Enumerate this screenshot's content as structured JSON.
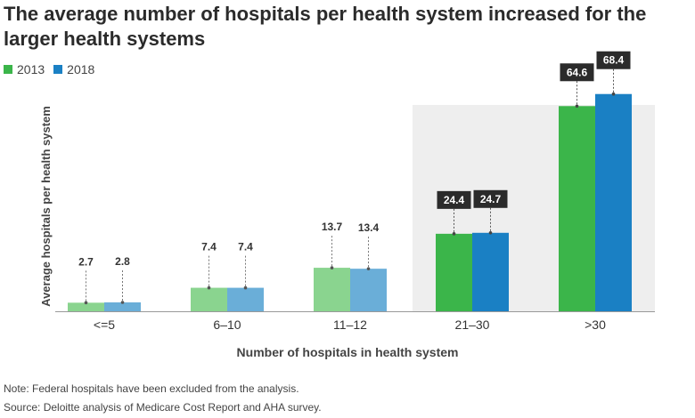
{
  "title": "The average number of hospitals per health system increased for the larger health systems",
  "legend": [
    {
      "label": "2013",
      "color": "#3bb54a"
    },
    {
      "label": "2018",
      "color": "#1a80c4"
    }
  ],
  "chart_data": {
    "type": "bar",
    "title": "The average number of hospitals per health system increased for the larger health systems",
    "xlabel": "Number of hospitals in health system",
    "ylabel": "Average hospitals per health system",
    "categories": [
      "<=5",
      "6–10",
      "11–12",
      "21–30",
      ">30"
    ],
    "series": [
      {
        "name": "2013",
        "values": [
          2.7,
          7.4,
          13.7,
          24.4,
          64.6
        ]
      },
      {
        "name": "2018",
        "values": [
          2.8,
          7.4,
          13.4,
          24.7,
          68.4
        ]
      }
    ],
    "value_labels": [
      [
        "2.7",
        "7.4",
        "13.7",
        "24.4",
        "64.6"
      ],
      [
        "2.8",
        "7.4",
        "13.4",
        "24.7",
        "68.4"
      ]
    ],
    "highlighted_categories": [
      "21–30",
      ">30"
    ],
    "ylim": [
      0,
      70
    ],
    "grid": false,
    "legend_position": "top-left"
  },
  "colors": {
    "series_2013": "#3bb54a",
    "series_2018": "#1a80c4",
    "series_2013_muted": "#8ad48f",
    "series_2018_muted": "#6aaed8",
    "highlight_panel": "#eeeeee",
    "label_box": "#2b2b2b"
  },
  "notes": {
    "note": "Note: Federal hospitals have been excluded from the analysis.",
    "source": "Source: Deloitte analysis of Medicare Cost Report and AHA survey."
  }
}
